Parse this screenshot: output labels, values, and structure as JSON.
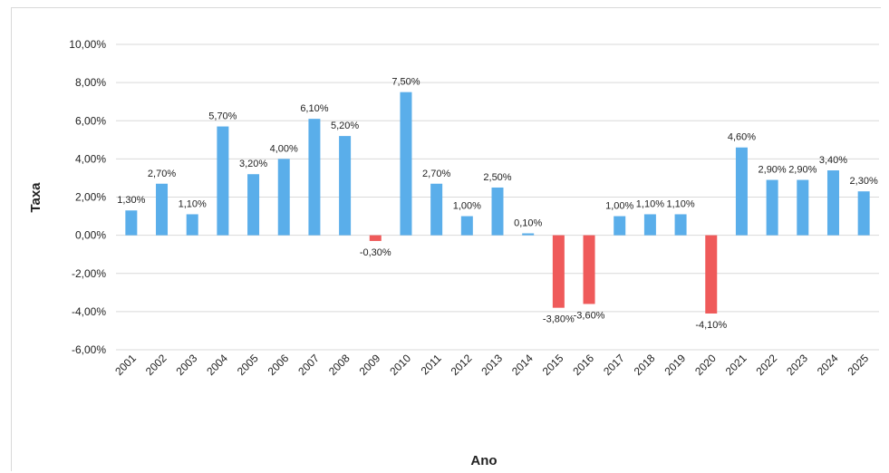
{
  "chart_data": {
    "type": "bar",
    "title": "",
    "xlabel": "Ano",
    "ylabel": "Taxa",
    "ylim": [
      -6,
      10
    ],
    "yticks": [
      "10,00%",
      "8,00%",
      "6,00%",
      "4,00%",
      "2,00%",
      "0,00%",
      "-2,00%",
      "-4,00%",
      "-6,00%"
    ],
    "ytick_values": [
      10,
      8,
      6,
      4,
      2,
      0,
      -2,
      -4,
      -6
    ],
    "grid": true,
    "legend": "none",
    "colors": {
      "positive": "#5aaeea",
      "negative": "#ef5a5a",
      "grid": "#d9d9d9"
    },
    "categories": [
      "2001",
      "2002",
      "2003",
      "2004",
      "2005",
      "2006",
      "2007",
      "2008",
      "2009",
      "2010",
      "2011",
      "2012",
      "2013",
      "2014",
      "2015",
      "2016",
      "2017",
      "2018",
      "2019",
      "2020",
      "2021",
      "2022",
      "2023",
      "2024",
      "2025"
    ],
    "values": [
      1.3,
      2.7,
      1.1,
      5.7,
      3.2,
      4.0,
      6.1,
      5.2,
      -0.3,
      7.5,
      2.7,
      1.0,
      2.5,
      0.1,
      -3.8,
      -3.6,
      1.0,
      1.1,
      1.1,
      -4.1,
      4.6,
      2.9,
      2.9,
      3.4,
      2.3
    ],
    "data_labels": [
      "1,30%",
      "2,70%",
      "1,10%",
      "5,70%",
      "3,20%",
      "4,00%",
      "6,10%",
      "5,20%",
      "-0,30%",
      "7,50%",
      "2,70%",
      "1,00%",
      "2,50%",
      "0,10%",
      "-3,80%",
      "-3,60%",
      "1,00%",
      "1,10%",
      "1,10%",
      "-4,10%",
      "4,60%",
      "2,90%",
      "2,90%",
      "3,40%",
      "2,30%"
    ]
  }
}
